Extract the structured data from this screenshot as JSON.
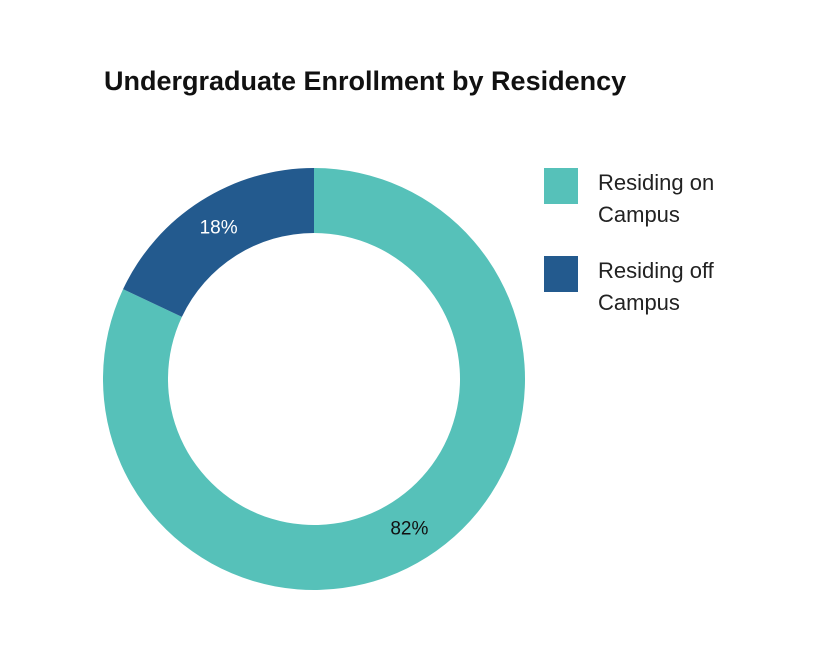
{
  "chart_data": {
    "type": "donut",
    "title": "Undergraduate Enrollment by Residency",
    "categories": [
      "Residing on Campus",
      "Residing off Campus"
    ],
    "values": [
      82,
      18
    ],
    "value_labels": [
      "82%",
      "18%"
    ],
    "colors": [
      "#56c1b9",
      "#235a8e"
    ],
    "legend": "right"
  }
}
